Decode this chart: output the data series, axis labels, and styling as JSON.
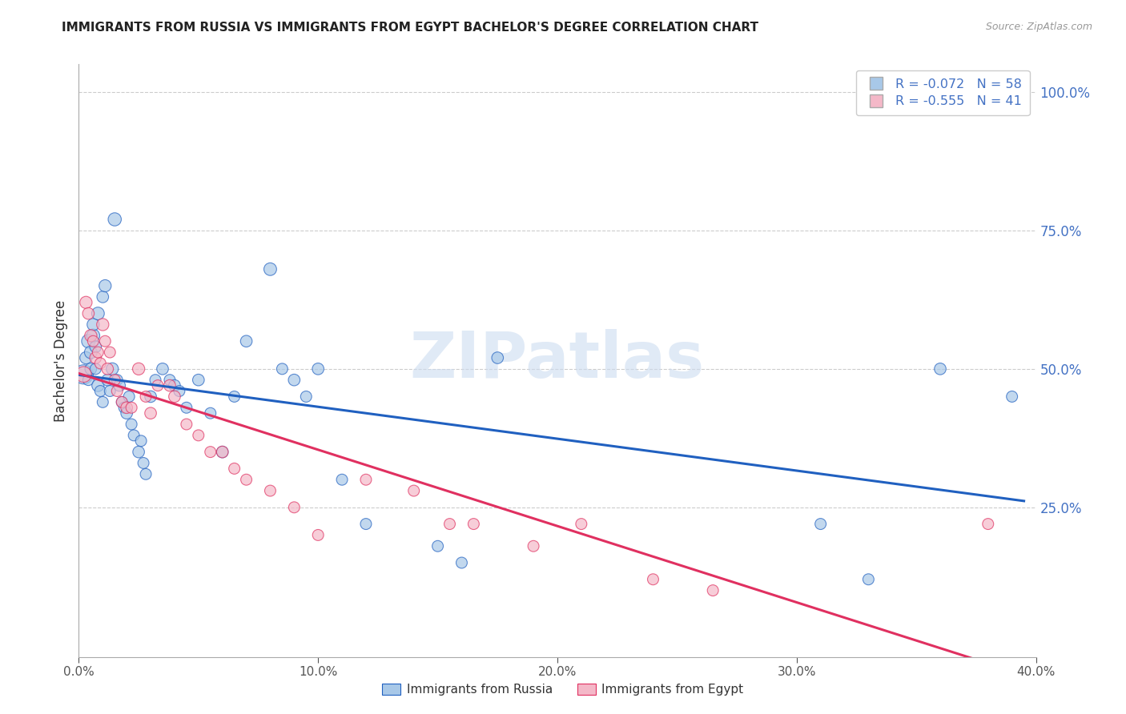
{
  "title": "IMMIGRANTS FROM RUSSIA VS IMMIGRANTS FROM EGYPT BACHELOR'S DEGREE CORRELATION CHART",
  "source": "Source: ZipAtlas.com",
  "ylabel": "Bachelor's Degree",
  "xlim": [
    0.0,
    0.4
  ],
  "ylim": [
    -0.02,
    1.05
  ],
  "R_russia": -0.072,
  "N_russia": 58,
  "R_egypt": -0.555,
  "N_egypt": 41,
  "color_russia": "#a8c8e8",
  "color_egypt": "#f4b8c8",
  "trend_russia": "#2060c0",
  "trend_egypt": "#e03060",
  "watermark": "ZIPatlas",
  "russia_x": [
    0.002,
    0.003,
    0.004,
    0.004,
    0.005,
    0.005,
    0.006,
    0.006,
    0.007,
    0.007,
    0.008,
    0.008,
    0.009,
    0.01,
    0.01,
    0.011,
    0.012,
    0.013,
    0.014,
    0.015,
    0.016,
    0.017,
    0.018,
    0.019,
    0.02,
    0.021,
    0.022,
    0.023,
    0.025,
    0.026,
    0.027,
    0.028,
    0.03,
    0.032,
    0.035,
    0.038,
    0.04,
    0.042,
    0.045,
    0.05,
    0.055,
    0.06,
    0.065,
    0.07,
    0.08,
    0.085,
    0.09,
    0.095,
    0.1,
    0.11,
    0.12,
    0.15,
    0.16,
    0.175,
    0.31,
    0.33,
    0.36,
    0.39
  ],
  "russia_y": [
    0.49,
    0.52,
    0.48,
    0.55,
    0.5,
    0.53,
    0.56,
    0.58,
    0.54,
    0.5,
    0.47,
    0.6,
    0.46,
    0.63,
    0.44,
    0.65,
    0.48,
    0.46,
    0.5,
    0.77,
    0.48,
    0.47,
    0.44,
    0.43,
    0.42,
    0.45,
    0.4,
    0.38,
    0.35,
    0.37,
    0.33,
    0.31,
    0.45,
    0.48,
    0.5,
    0.48,
    0.47,
    0.46,
    0.43,
    0.48,
    0.42,
    0.35,
    0.45,
    0.55,
    0.68,
    0.5,
    0.48,
    0.45,
    0.5,
    0.3,
    0.22,
    0.18,
    0.15,
    0.52,
    0.22,
    0.12,
    0.5,
    0.45
  ],
  "egypt_x": [
    0.002,
    0.003,
    0.004,
    0.005,
    0.006,
    0.007,
    0.008,
    0.009,
    0.01,
    0.011,
    0.012,
    0.013,
    0.015,
    0.016,
    0.018,
    0.02,
    0.022,
    0.025,
    0.028,
    0.03,
    0.033,
    0.038,
    0.04,
    0.045,
    0.05,
    0.055,
    0.06,
    0.065,
    0.07,
    0.08,
    0.09,
    0.1,
    0.12,
    0.14,
    0.155,
    0.165,
    0.19,
    0.21,
    0.24,
    0.265,
    0.38
  ],
  "egypt_y": [
    0.49,
    0.62,
    0.6,
    0.56,
    0.55,
    0.52,
    0.53,
    0.51,
    0.58,
    0.55,
    0.5,
    0.53,
    0.48,
    0.46,
    0.44,
    0.43,
    0.43,
    0.5,
    0.45,
    0.42,
    0.47,
    0.47,
    0.45,
    0.4,
    0.38,
    0.35,
    0.35,
    0.32,
    0.3,
    0.28,
    0.25,
    0.2,
    0.3,
    0.28,
    0.22,
    0.22,
    0.18,
    0.22,
    0.12,
    0.1,
    0.22
  ],
  "russia_sizes": [
    300,
    120,
    100,
    150,
    110,
    130,
    140,
    120,
    110,
    100,
    120,
    130,
    100,
    110,
    100,
    120,
    110,
    100,
    120,
    140,
    100,
    110,
    100,
    100,
    110,
    100,
    100,
    100,
    110,
    100,
    100,
    100,
    110,
    100,
    110,
    100,
    110,
    100,
    100,
    110,
    100,
    110,
    100,
    110,
    130,
    100,
    110,
    100,
    110,
    100,
    100,
    100,
    100,
    110,
    100,
    100,
    110,
    100
  ],
  "egypt_sizes": [
    200,
    120,
    110,
    120,
    100,
    110,
    100,
    100,
    120,
    100,
    110,
    100,
    100,
    100,
    100,
    110,
    100,
    120,
    100,
    110,
    100,
    110,
    110,
    100,
    100,
    100,
    110,
    100,
    100,
    100,
    100,
    100,
    100,
    100,
    100,
    100,
    100,
    100,
    100,
    100,
    100
  ]
}
